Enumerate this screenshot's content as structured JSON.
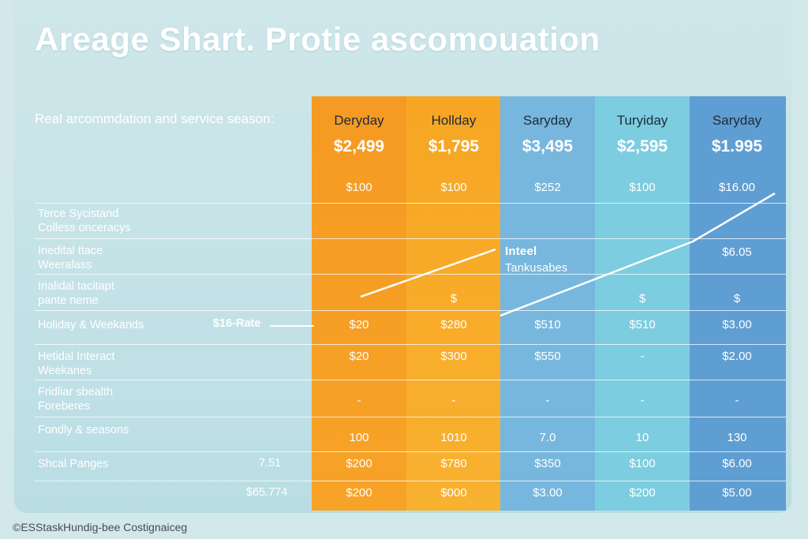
{
  "chart_data": {
    "type": "table",
    "title": "Areage Shart. Protie ascomouation",
    "subtitle": "Real arcommdation and service season:",
    "columns": [
      {
        "name": "Deryday",
        "price": "$2,499",
        "color": "#f59a22"
      },
      {
        "name": "Hollday",
        "price": "$1,795",
        "color": "#f8ad2c"
      },
      {
        "name": "Saryday",
        "price": "$3,495",
        "color": "#77b7de"
      },
      {
        "name": "Turyiday",
        "price": "$2,595",
        "color": "#7ccde0"
      },
      {
        "name": "Saryday",
        "price": "$1.995",
        "color": "#5f9ed2"
      }
    ],
    "rows": [
      {
        "label": [
          "",
          ""
        ],
        "side": "",
        "cells": [
          "$100",
          "$100",
          "$252",
          "$100",
          "$16.00"
        ]
      },
      {
        "label": [
          "Terce Sycistand",
          "Colless onceracys"
        ],
        "side": "",
        "cells": [
          "",
          "",
          "",
          "",
          ""
        ]
      },
      {
        "label": [
          "Inedital ttace",
          "Weeralass"
        ],
        "side": "",
        "cells": [
          "",
          "",
          "",
          "",
          "$6.05"
        ]
      },
      {
        "label": [
          "Inalidal tacitapt",
          "pante neme"
        ],
        "side": "",
        "cells": [
          "",
          "$",
          "",
          "$",
          "$"
        ]
      },
      {
        "label": [
          "Holiday & Weekands",
          ""
        ],
        "side": "$16-Rate",
        "cells": [
          "$20",
          "$280",
          "$510",
          "$510",
          "$3.00"
        ]
      },
      {
        "label": [
          "Hetidal Interact",
          "Weekanes"
        ],
        "side": "",
        "cells": [
          "$20",
          "$300",
          "$550",
          "-",
          "$2.00"
        ]
      },
      {
        "label": [
          "Fridliar sbealth",
          "Foreberes"
        ],
        "side": "",
        "cells": [
          "-",
          "-",
          "-",
          "-",
          "-"
        ]
      },
      {
        "label": [
          "Fondly & seasons",
          ""
        ],
        "side": "",
        "cells": [
          "100",
          "1010",
          "7.0",
          "10",
          "130"
        ]
      },
      {
        "label": [
          "Shcal Panges",
          ""
        ],
        "side": "7.51",
        "cells": [
          "$200",
          "$780",
          "$350",
          "$100",
          "$6.00"
        ]
      },
      {
        "label": [
          "",
          ""
        ],
        "side": "$65.774",
        "cells": [
          "$200",
          "$000",
          "$3.00",
          "$200",
          "$5.00"
        ]
      }
    ],
    "annotations": [
      "Inteel",
      "Tankusabes"
    ],
    "grid": true
  },
  "footer": "©ESStaskHundig-bee Costignaiceg"
}
